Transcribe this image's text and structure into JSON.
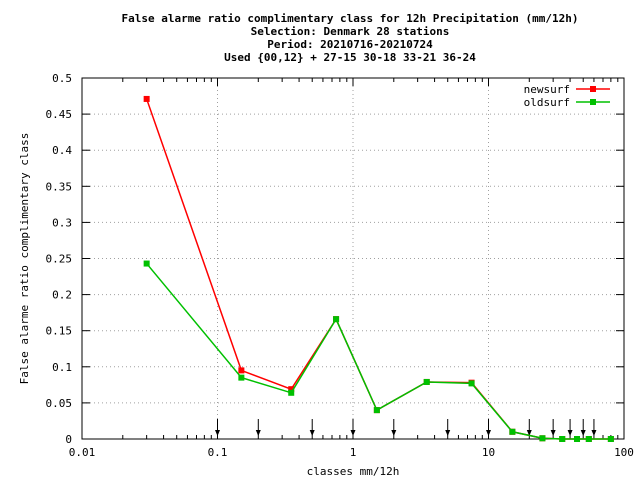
{
  "chart_data": {
    "type": "line",
    "title_lines": [
      "False alarme ratio complimentary class  for 12h Precipitation (mm/12h)",
      "Selection: Denmark     28 stations",
      "Period: 20210716-20210724",
      "Used {00,12} + 27-15 30-18 33-21 36-24"
    ],
    "xlabel": "classes mm/12h",
    "ylabel": "False alarme ratio complimentary class",
    "x_scale": "log",
    "xlim": [
      0.01,
      100
    ],
    "ylim": [
      0,
      0.5
    ],
    "x_ticks": [
      {
        "value": 0.01,
        "label": "0.01"
      },
      {
        "value": 0.1,
        "label": "0.1"
      },
      {
        "value": 1,
        "label": "1"
      },
      {
        "value": 10,
        "label": "10"
      },
      {
        "value": 100,
        "label": "100"
      }
    ],
    "y_ticks": [
      {
        "value": 0,
        "label": "0"
      },
      {
        "value": 0.05,
        "label": "0.05"
      },
      {
        "value": 0.1,
        "label": "0.1"
      },
      {
        "value": 0.15,
        "label": "0.15"
      },
      {
        "value": 0.2,
        "label": "0.2"
      },
      {
        "value": 0.25,
        "label": "0.25"
      },
      {
        "value": 0.3,
        "label": "0.3"
      },
      {
        "value": 0.35,
        "label": "0.35"
      },
      {
        "value": 0.4,
        "label": "0.4"
      },
      {
        "value": 0.45,
        "label": "0.45"
      },
      {
        "value": 0.5,
        "label": "0.5"
      }
    ],
    "grid": true,
    "legend_position": "top-right",
    "threshold_arrows": [
      0.1,
      0.2,
      0.5,
      1,
      2,
      5,
      10,
      20,
      30,
      40,
      50,
      60
    ],
    "series": [
      {
        "name": "newsurf",
        "color": "#ff0000",
        "x": [
          0.03,
          0.15,
          0.35,
          0.75,
          1.5,
          3.5,
          7.5,
          15,
          25,
          35,
          45,
          55,
          80
        ],
        "y": [
          0.471,
          0.095,
          0.069,
          0.166,
          0.04,
          0.079,
          0.078,
          0.01,
          0.001,
          0.0,
          0.0,
          0.0,
          0.0
        ]
      },
      {
        "name": "oldsurf",
        "color": "#00c000",
        "x": [
          0.03,
          0.15,
          0.35,
          0.75,
          1.5,
          3.5,
          7.5,
          15,
          25,
          35,
          45,
          55,
          80
        ],
        "y": [
          0.243,
          0.085,
          0.064,
          0.166,
          0.04,
          0.079,
          0.077,
          0.01,
          0.001,
          0.0,
          0.0,
          0.0,
          0.0
        ]
      }
    ]
  }
}
